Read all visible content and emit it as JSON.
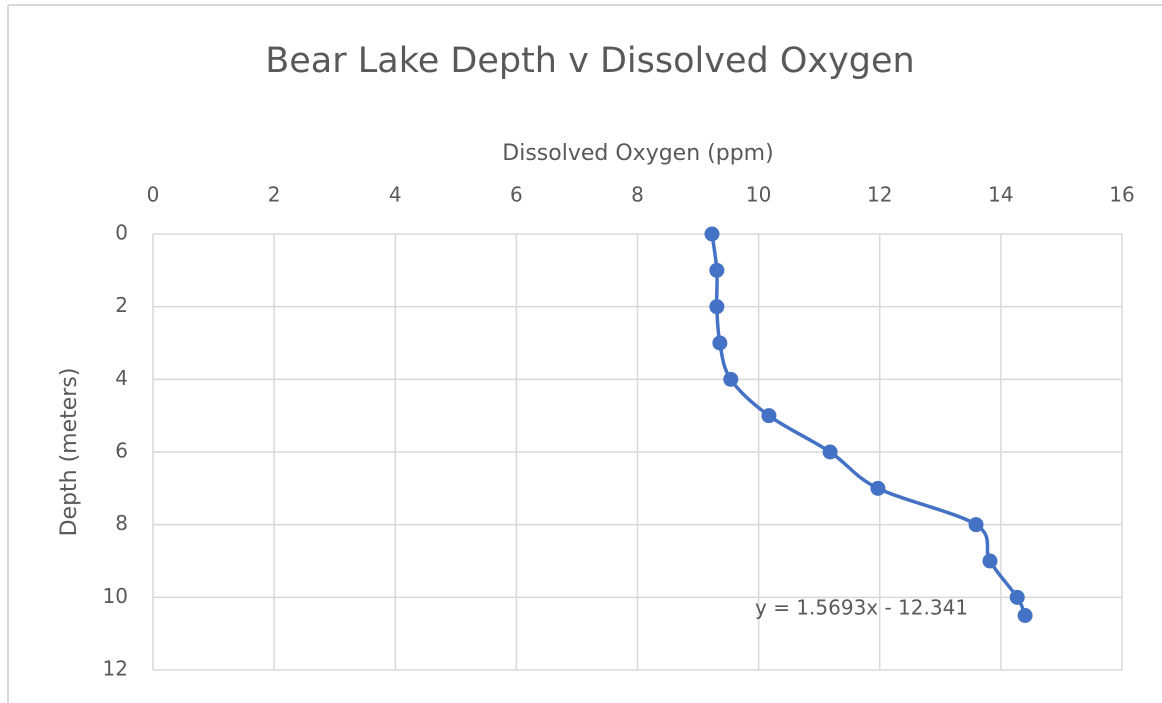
{
  "chart_data": {
    "type": "scatter",
    "title": "Bear Lake Depth v Dissolved Oxygen",
    "x_label": "Dissolved Oxygen (ppm)",
    "y_label": "Depth (meters)",
    "x": [
      9.23,
      9.31,
      9.31,
      9.36,
      9.54,
      10.17,
      11.18,
      11.97,
      13.59,
      13.82,
      14.27,
      14.4
    ],
    "series": [
      {
        "color": "#4472c4",
        "values": [
          0,
          1,
          2,
          3,
          4,
          5,
          6,
          7,
          8,
          9,
          10,
          10.5
        ]
      }
    ],
    "xlim": [
      0,
      16
    ],
    "xticks": [
      0,
      2,
      4,
      6,
      8,
      10,
      12,
      14,
      16
    ],
    "ylim": [
      0,
      12
    ],
    "yticks": [
      0,
      2,
      4,
      6,
      8,
      10,
      12
    ],
    "y_inverted": true,
    "x_axis_position": "top",
    "smooth": true,
    "grid": true,
    "annotation": "y = 1.5693x - 12.341"
  }
}
